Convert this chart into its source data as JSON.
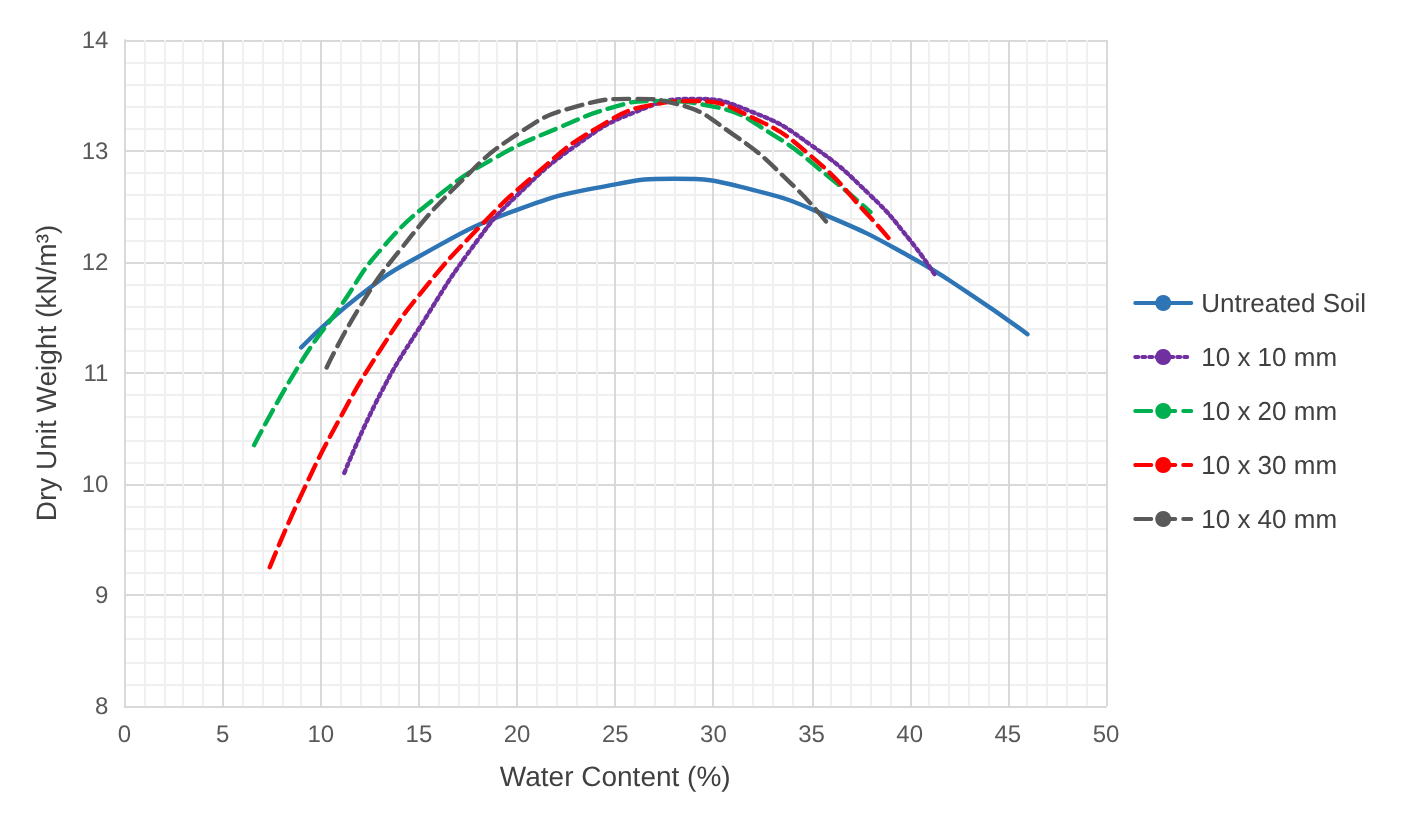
{
  "chart_data": {
    "type": "line",
    "xlabel": "Water Content (%)",
    "ylabel": "Dry Unit Weight (kN/m³)",
    "xlim": [
      0,
      50
    ],
    "xticks": [
      0,
      5,
      10,
      15,
      20,
      25,
      30,
      35,
      40,
      45,
      50
    ],
    "ylim": [
      8,
      14
    ],
    "yticks": [
      8,
      9,
      10,
      11,
      12,
      13,
      14
    ],
    "grid": true,
    "legend": "right",
    "marker": "none",
    "series": [
      {
        "name": "Untreated Soil",
        "color": "#2e75b6",
        "line_style": "solid",
        "x": [
          9,
          12,
          15,
          20,
          25,
          28,
          32,
          36,
          40,
          43,
          46
        ],
        "values": [
          11.23,
          11.7,
          12.05,
          12.47,
          12.7,
          12.75,
          12.65,
          12.4,
          12.05,
          11.72,
          11.35
        ]
      },
      {
        "name": "10 x 10 mm",
        "color": "#7030a0",
        "line_style": "dotted",
        "x": [
          11.2,
          13,
          15,
          18,
          20,
          23,
          26,
          29,
          32,
          35,
          38,
          40,
          41.3
        ],
        "values": [
          10.1,
          10.8,
          11.4,
          12.2,
          12.6,
          13.05,
          13.35,
          13.47,
          13.35,
          13.05,
          12.6,
          12.2,
          11.88
        ]
      },
      {
        "name": "10 x 20 mm",
        "color": "#00b050",
        "line_style": "dashed",
        "x": [
          6.6,
          9,
          11,
          13,
          16,
          19,
          22,
          25,
          27,
          30,
          33,
          36,
          38
        ],
        "values": [
          10.35,
          11.1,
          11.6,
          12.1,
          12.6,
          12.95,
          13.2,
          13.4,
          13.45,
          13.4,
          13.15,
          12.75,
          12.45
        ]
      },
      {
        "name": "10 x 30 mm",
        "color": "#ff0000",
        "line_style": "dashed",
        "x": [
          7.4,
          9,
          11,
          13,
          15,
          18,
          21,
          24,
          27,
          29,
          32,
          35,
          38,
          39
        ],
        "values": [
          9.25,
          9.9,
          10.6,
          11.2,
          11.7,
          12.3,
          12.8,
          13.2,
          13.42,
          13.45,
          13.3,
          12.95,
          12.4,
          12.2
        ]
      },
      {
        "name": "10 x 40 mm",
        "color": "#595959",
        "line_style": "dashed",
        "x": [
          10.3,
          12,
          14,
          17,
          20,
          23,
          26,
          28,
          31,
          34,
          35.8
        ],
        "values": [
          11.05,
          11.6,
          12.1,
          12.7,
          13.15,
          13.4,
          13.47,
          13.43,
          13.15,
          12.7,
          12.35
        ]
      }
    ]
  }
}
